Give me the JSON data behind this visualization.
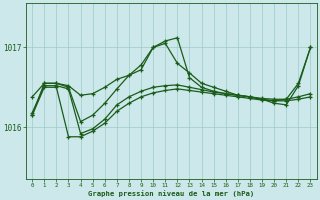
{
  "title": "Graphe pression niveau de la mer (hPa)",
  "background_color": "#cce8ea",
  "plot_bg_color": "#cce8ea",
  "line_color": "#1a5c1a",
  "grid_color": "#9ecaca",
  "text_color": "#1a5c1a",
  "x_ticks": [
    0,
    1,
    2,
    3,
    4,
    5,
    6,
    7,
    8,
    9,
    10,
    11,
    12,
    13,
    14,
    15,
    16,
    17,
    18,
    19,
    20,
    21,
    22,
    23
  ],
  "y_ticks": [
    1016,
    1017
  ],
  "ylim": [
    1015.35,
    1017.55
  ],
  "xlim": [
    -0.5,
    23.5
  ],
  "series": {
    "line_A": {
      "x": [
        0,
        1,
        2,
        3,
        4,
        5,
        6,
        7,
        8,
        9,
        10,
        11,
        12,
        13,
        14,
        15,
        16,
        17,
        18,
        19,
        20,
        21,
        22,
        23
      ],
      "y": [
        1016.15,
        1016.55,
        1016.55,
        1016.5,
        1016.07,
        1016.15,
        1016.3,
        1016.48,
        1016.65,
        1016.78,
        1017.0,
        1017.08,
        1017.12,
        1016.62,
        1016.5,
        1016.45,
        1016.42,
        1016.4,
        1016.38,
        1016.35,
        1016.3,
        1016.28,
        1016.52,
        1017.0
      ]
    },
    "line_B": {
      "x": [
        0,
        1,
        2,
        3,
        4,
        5,
        6,
        7,
        8,
        9,
        10,
        11,
        12,
        13,
        14,
        15,
        16,
        17,
        18,
        19,
        20,
        21,
        22,
        23
      ],
      "y": [
        1016.18,
        1016.52,
        1016.52,
        1016.48,
        1015.92,
        1015.98,
        1016.1,
        1016.28,
        1016.38,
        1016.45,
        1016.5,
        1016.52,
        1016.53,
        1016.5,
        1016.47,
        1016.44,
        1016.42,
        1016.4,
        1016.38,
        1016.36,
        1016.35,
        1016.35,
        1016.38,
        1016.42
      ]
    },
    "line_C": {
      "x": [
        0,
        1,
        2,
        3,
        4,
        5,
        6,
        7,
        8,
        9,
        10,
        11,
        12,
        13,
        14,
        15,
        16,
        17,
        18,
        19,
        20,
        21,
        22,
        23
      ],
      "y": [
        1016.15,
        1016.5,
        1016.5,
        1015.88,
        1015.88,
        1015.95,
        1016.05,
        1016.2,
        1016.3,
        1016.38,
        1016.43,
        1016.46,
        1016.48,
        1016.46,
        1016.44,
        1016.42,
        1016.4,
        1016.38,
        1016.36,
        1016.34,
        1016.33,
        1016.33,
        1016.35,
        1016.38
      ]
    },
    "line_D": {
      "x": [
        0,
        1,
        2,
        3,
        4,
        5,
        6,
        7,
        8,
        9,
        10,
        11,
        12,
        13,
        14,
        15,
        16,
        17,
        18,
        19,
        20,
        21,
        22,
        23
      ],
      "y": [
        1016.38,
        1016.55,
        1016.55,
        1016.52,
        1016.4,
        1016.42,
        1016.5,
        1016.6,
        1016.65,
        1016.72,
        1017.0,
        1017.05,
        1016.8,
        1016.68,
        1016.55,
        1016.5,
        1016.45,
        1016.4,
        1016.38,
        1016.35,
        1016.33,
        1016.35,
        1016.55,
        1017.0
      ]
    }
  }
}
